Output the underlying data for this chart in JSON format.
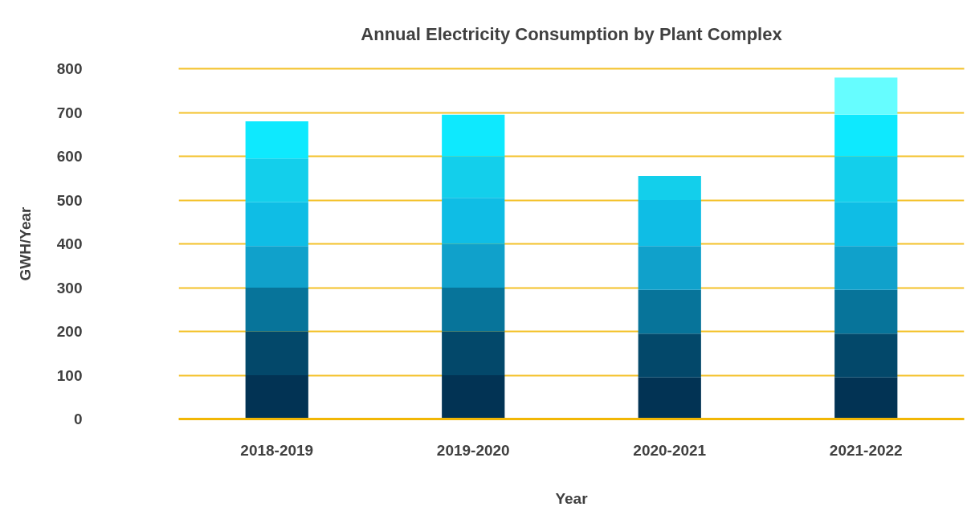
{
  "chart_data": {
    "type": "bar",
    "title": "Annual Electricity Consumption by Plant Complex",
    "xlabel": "Year",
    "ylabel": "GWH/Year",
    "categories": [
      "2018-2019",
      "2019-2020",
      "2020-2021",
      "2021-2022"
    ],
    "stacked": true,
    "series": [
      {
        "color": "#023354",
        "values": [
          100,
          100,
          95,
          95
        ]
      },
      {
        "color": "#03486a",
        "values": [
          100,
          100,
          100,
          100
        ]
      },
      {
        "color": "#07749a",
        "values": [
          100,
          100,
          100,
          100
        ]
      },
      {
        "color": "#10a1cb",
        "values": [
          95,
          100,
          100,
          100
        ]
      },
      {
        "color": "#0fbde5",
        "values": [
          100,
          105,
          105,
          100
        ]
      },
      {
        "color": "#13cfeb",
        "values": [
          100,
          95,
          55,
          105
        ]
      },
      {
        "color": "#0ee9fe",
        "values": [
          85,
          95,
          null,
          95
        ]
      },
      {
        "color": "#66fdff",
        "values": [
          null,
          null,
          null,
          85
        ]
      }
    ],
    "ylim": [
      0,
      800
    ],
    "yticks": [
      0,
      100,
      200,
      300,
      400,
      500,
      600,
      700,
      800
    ],
    "grid": "y"
  }
}
